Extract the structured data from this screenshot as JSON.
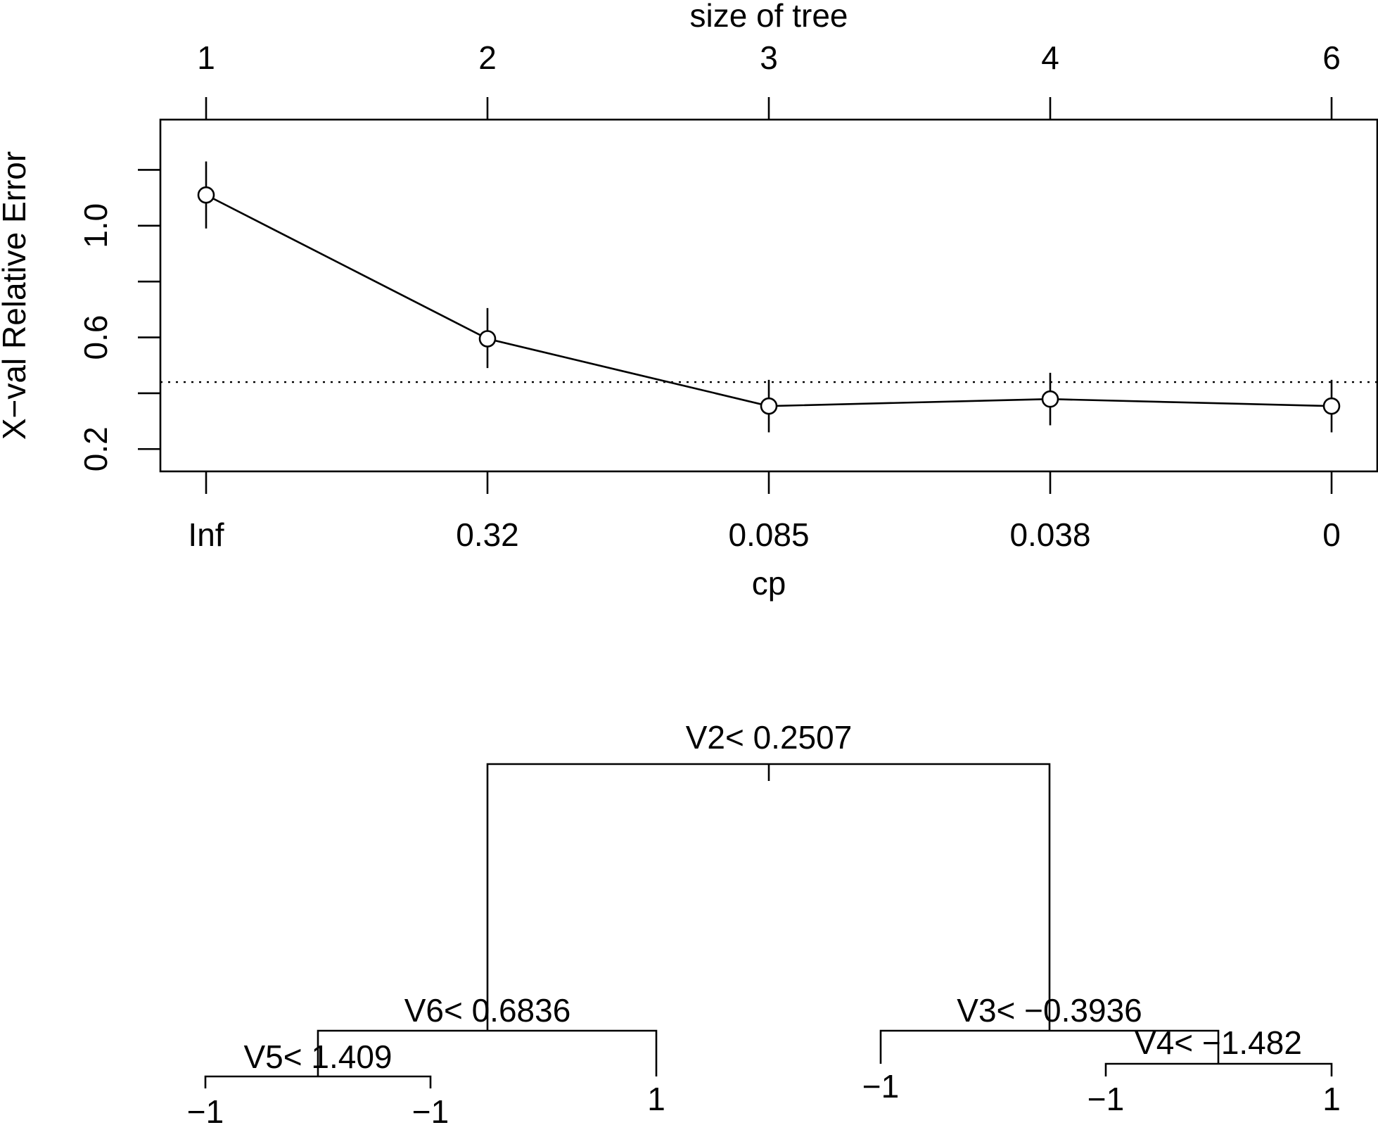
{
  "chart_data": [
    {
      "type": "line",
      "xlabel": "cp",
      "ylabel": "X−val Relative Error",
      "top_axis_label": "size of tree",
      "categories": [
        "Inf",
        "0.32",
        "0.085",
        "0.038",
        "0"
      ],
      "top_categories": [
        "1",
        "2",
        "3",
        "4",
        "6"
      ],
      "y_ticks": [
        "0.2",
        "0.6",
        "1.0"
      ],
      "ylim": [
        0.12,
        1.38
      ],
      "grid": false,
      "series": [
        {
          "values": [
            1.11,
            0.595,
            0.354,
            0.379,
            0.354
          ],
          "error_low": [
            0.99,
            0.49,
            0.26,
            0.285,
            0.26
          ],
          "error_high": [
            1.23,
            0.705,
            0.448,
            0.473,
            0.448
          ]
        }
      ],
      "reference_line": 0.44,
      "color": "#000000"
    },
    {
      "type": "tree",
      "nodes": {
        "root": "V2< 0.2507",
        "left": "V6< 0.6836",
        "left_left": "V5< 1.409",
        "right": "V3< −0.3936",
        "right_right": "V4< −1.482"
      },
      "leaves": [
        "−1",
        "−1",
        "1",
        "−1",
        "−1",
        "1"
      ]
    }
  ]
}
